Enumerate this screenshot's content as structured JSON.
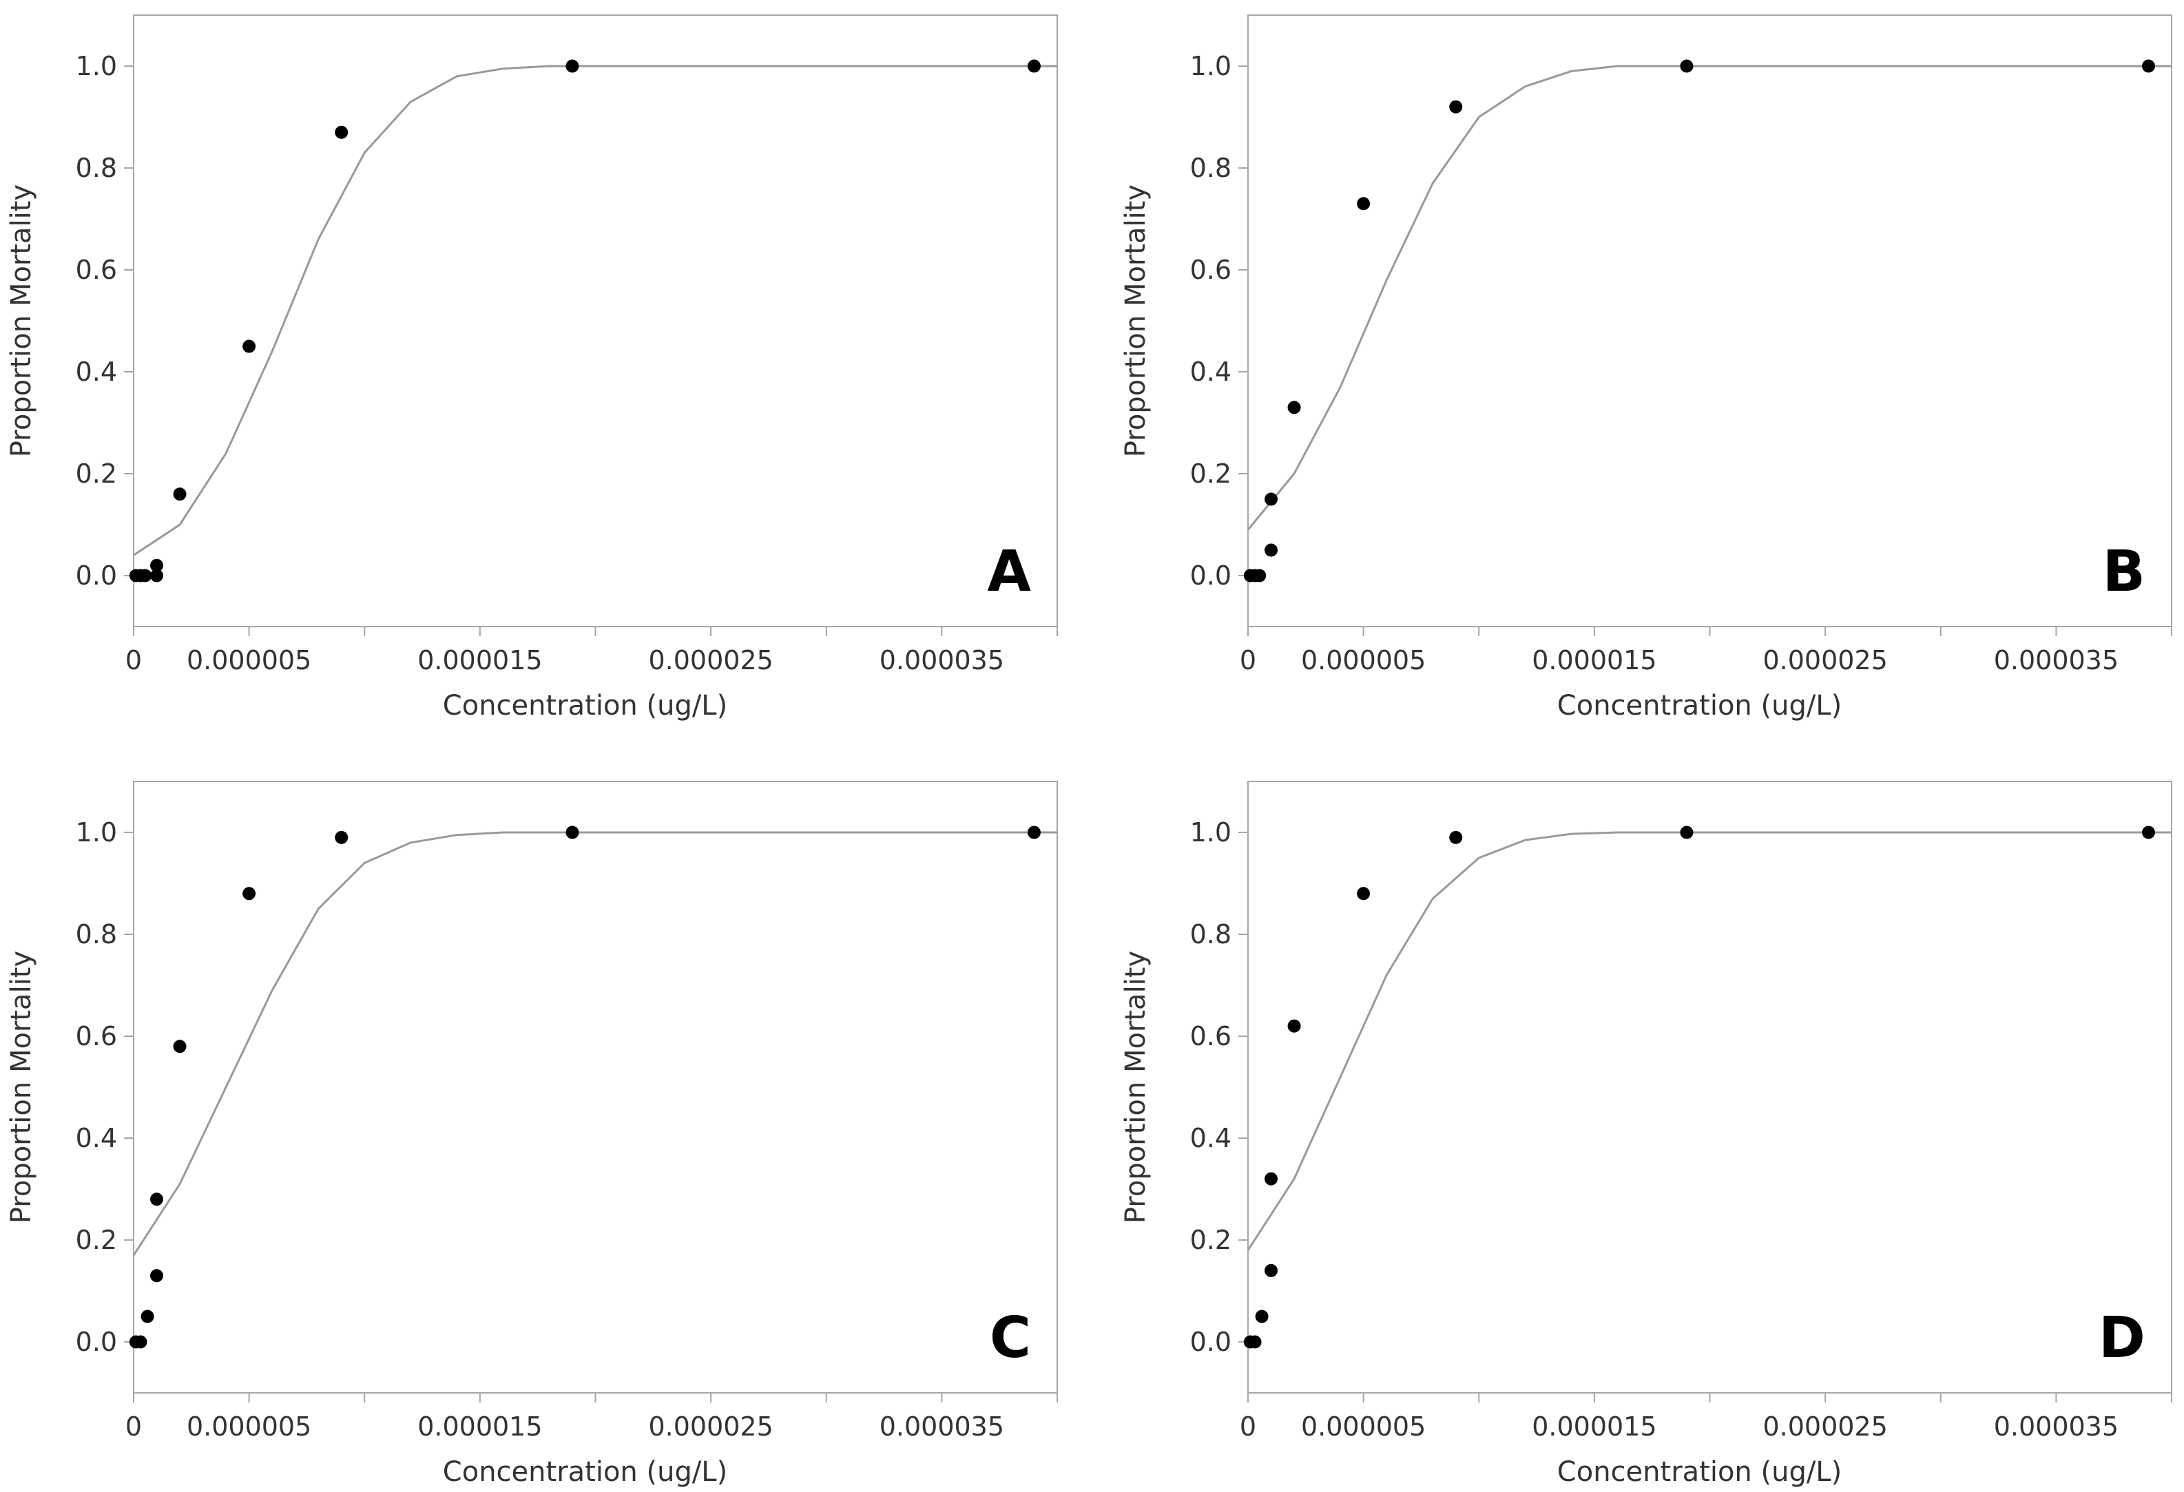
{
  "chart_data": [
    {
      "type": "scatter",
      "panel_label": "A",
      "xlabel": "Concentration (ug/L)",
      "ylabel": "Proportion Mortality",
      "xlim": [
        0,
        4e-05
      ],
      "ylim": [
        -0.1,
        1.1
      ],
      "x_ticks": [
        0,
        5e-06,
        1e-05,
        1.5e-05,
        2e-05,
        2.5e-05,
        3e-05,
        3.5e-05,
        4e-05
      ],
      "x_tick_labels": [
        "0",
        "0.000005",
        "",
        "0.000015",
        "",
        "0.000025",
        "",
        "0.000035",
        ""
      ],
      "y_ticks": [
        0.0,
        0.2,
        0.4,
        0.6,
        0.8,
        1.0
      ],
      "y_tick_labels": [
        "0.0",
        "0.2",
        "0.4",
        "0.6",
        "0.8",
        "1.0"
      ],
      "points": {
        "x": [
          1e-07,
          3e-07,
          5e-07,
          1e-06,
          1e-06,
          2e-06,
          5e-06,
          9e-06,
          1.9e-05,
          3.9e-05
        ],
        "y": [
          0.0,
          0.0,
          0.0,
          0.0,
          0.02,
          0.16,
          0.45,
          0.87,
          1.0,
          1.0
        ]
      },
      "fit_curve": {
        "x": [
          0,
          2e-06,
          4e-06,
          6e-06,
          8e-06,
          1e-05,
          1.2e-05,
          1.4e-05,
          1.6e-05,
          1.8e-05,
          2e-05,
          2.5e-05,
          3e-05,
          3.5e-05,
          4e-05
        ],
        "y": [
          0.04,
          0.1,
          0.24,
          0.44,
          0.66,
          0.83,
          0.93,
          0.98,
          0.995,
          1.0,
          1.0,
          1.0,
          1.0,
          1.0,
          1.0
        ]
      },
      "grid": false,
      "legend": "none"
    },
    {
      "type": "scatter",
      "panel_label": "B",
      "xlabel": "Concentration (ug/L)",
      "ylabel": "Proportion Mortality",
      "xlim": [
        0,
        4e-05
      ],
      "ylim": [
        -0.1,
        1.1
      ],
      "x_ticks": [
        0,
        5e-06,
        1e-05,
        1.5e-05,
        2e-05,
        2.5e-05,
        3e-05,
        3.5e-05,
        4e-05
      ],
      "x_tick_labels": [
        "0",
        "0.000005",
        "",
        "0.000015",
        "",
        "0.000025",
        "",
        "0.000035",
        ""
      ],
      "y_ticks": [
        0.0,
        0.2,
        0.4,
        0.6,
        0.8,
        1.0
      ],
      "y_tick_labels": [
        "0.0",
        "0.2",
        "0.4",
        "0.6",
        "0.8",
        "1.0"
      ],
      "points": {
        "x": [
          1e-07,
          3e-07,
          5e-07,
          1e-06,
          1e-06,
          2e-06,
          5e-06,
          9e-06,
          1.9e-05,
          3.9e-05
        ],
        "y": [
          0.0,
          0.0,
          0.0,
          0.05,
          0.15,
          0.33,
          0.73,
          0.92,
          1.0,
          1.0
        ]
      },
      "fit_curve": {
        "x": [
          0,
          2e-06,
          4e-06,
          6e-06,
          8e-06,
          1e-05,
          1.2e-05,
          1.4e-05,
          1.6e-05,
          1.8e-05,
          2e-05,
          2.5e-05,
          3e-05,
          3.5e-05,
          4e-05
        ],
        "y": [
          0.09,
          0.2,
          0.37,
          0.58,
          0.77,
          0.9,
          0.96,
          0.99,
          1.0,
          1.0,
          1.0,
          1.0,
          1.0,
          1.0,
          1.0
        ]
      },
      "grid": false,
      "legend": "none"
    },
    {
      "type": "scatter",
      "panel_label": "C",
      "xlabel": "Concentration (ug/L)",
      "ylabel": "Proportion Mortality",
      "xlim": [
        0,
        4e-05
      ],
      "ylim": [
        -0.1,
        1.1
      ],
      "x_ticks": [
        0,
        5e-06,
        1e-05,
        1.5e-05,
        2e-05,
        2.5e-05,
        3e-05,
        3.5e-05,
        4e-05
      ],
      "x_tick_labels": [
        "0",
        "0.000005",
        "",
        "0.000015",
        "",
        "0.000025",
        "",
        "0.000035",
        ""
      ],
      "y_ticks": [
        0.0,
        0.2,
        0.4,
        0.6,
        0.8,
        1.0
      ],
      "y_tick_labels": [
        "0.0",
        "0.2",
        "0.4",
        "0.6",
        "0.8",
        "1.0"
      ],
      "points": {
        "x": [
          1e-07,
          3e-07,
          6e-07,
          1e-06,
          1e-06,
          2e-06,
          5e-06,
          9e-06,
          1.9e-05,
          3.9e-05
        ],
        "y": [
          0.0,
          0.0,
          0.05,
          0.13,
          0.28,
          0.58,
          0.88,
          0.99,
          1.0,
          1.0
        ]
      },
      "fit_curve": {
        "x": [
          0,
          2e-06,
          4e-06,
          6e-06,
          8e-06,
          1e-05,
          1.2e-05,
          1.4e-05,
          1.6e-05,
          1.8e-05,
          2e-05,
          2.5e-05,
          3e-05,
          3.5e-05,
          4e-05
        ],
        "y": [
          0.17,
          0.31,
          0.5,
          0.69,
          0.85,
          0.94,
          0.98,
          0.995,
          1.0,
          1.0,
          1.0,
          1.0,
          1.0,
          1.0,
          1.0
        ]
      },
      "grid": false,
      "legend": "none"
    },
    {
      "type": "scatter",
      "panel_label": "D",
      "xlabel": "Concentration (ug/L)",
      "ylabel": "Proportion Mortality",
      "xlim": [
        0,
        4e-05
      ],
      "ylim": [
        -0.1,
        1.1
      ],
      "x_ticks": [
        0,
        5e-06,
        1e-05,
        1.5e-05,
        2e-05,
        2.5e-05,
        3e-05,
        3.5e-05,
        4e-05
      ],
      "x_tick_labels": [
        "0",
        "0.000005",
        "",
        "0.000015",
        "",
        "0.000025",
        "",
        "0.000035",
        ""
      ],
      "y_ticks": [
        0.0,
        0.2,
        0.4,
        0.6,
        0.8,
        1.0
      ],
      "y_tick_labels": [
        "0.0",
        "0.2",
        "0.4",
        "0.6",
        "0.8",
        "1.0"
      ],
      "points": {
        "x": [
          1e-07,
          3e-07,
          6e-07,
          1e-06,
          1e-06,
          2e-06,
          5e-06,
          9e-06,
          1.9e-05,
          3.9e-05
        ],
        "y": [
          0.0,
          0.0,
          0.05,
          0.14,
          0.32,
          0.62,
          0.88,
          0.99,
          1.0,
          1.0
        ]
      },
      "fit_curve": {
        "x": [
          0,
          2e-06,
          4e-06,
          6e-06,
          8e-06,
          1e-05,
          1.2e-05,
          1.4e-05,
          1.6e-05,
          1.8e-05,
          2e-05,
          2.5e-05,
          3e-05,
          3.5e-05,
          4e-05
        ],
        "y": [
          0.18,
          0.32,
          0.52,
          0.72,
          0.87,
          0.95,
          0.985,
          0.997,
          1.0,
          1.0,
          1.0,
          1.0,
          1.0,
          1.0,
          1.0
        ]
      },
      "grid": false,
      "legend": "none"
    }
  ],
  "colors": {
    "points": "#000000",
    "fit_curve": "#999999",
    "axis": "#a6a6a6",
    "text": "#333333"
  }
}
